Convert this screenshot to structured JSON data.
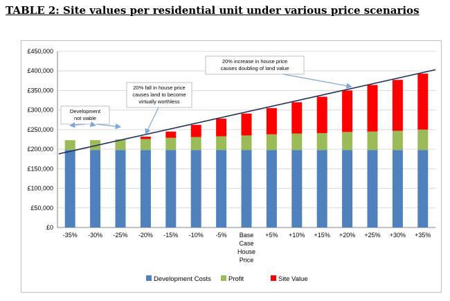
{
  "page": {
    "heading": "TABLE 2: Site values per residential unit under various price scenarios"
  },
  "chart_data": {
    "type": "bar",
    "stacked": true,
    "title": "",
    "xlabel": "",
    "ylabel": "",
    "ylim": [
      0,
      450000
    ],
    "ytick_step": 50000,
    "yticks": [
      "£0",
      "£50,000",
      "£100,000",
      "£150,000",
      "£200,000",
      "£250,000",
      "£300,000",
      "£350,000",
      "£400,000",
      "£450,000"
    ],
    "grid": true,
    "legend_position": "bottom",
    "categories": [
      "-35%",
      "-30%",
      "-25%",
      "-20%",
      "-15%",
      "-10%",
      "-5%",
      "Base Case House Price",
      "+5%",
      "+10%",
      "+15%",
      "+20%",
      "+25%",
      "+30%",
      "+35%"
    ],
    "category_label_lines": [
      [
        "-35%"
      ],
      [
        "-30%"
      ],
      [
        "-25%"
      ],
      [
        "-20%"
      ],
      [
        "-15%"
      ],
      [
        "-10%"
      ],
      [
        "-5%"
      ],
      [
        "Base",
        "Case",
        "House",
        "Price"
      ],
      [
        "+5%"
      ],
      [
        "+10%"
      ],
      [
        "+15%"
      ],
      [
        "+20%"
      ],
      [
        "+25%"
      ],
      [
        "+30%"
      ],
      [
        "+35%"
      ]
    ],
    "series": [
      {
        "name": "Development Costs",
        "color": "#4f81bd",
        "values": [
          198000,
          198000,
          198000,
          198000,
          198000,
          198000,
          198000,
          198000,
          198000,
          198000,
          198000,
          198000,
          198000,
          198000,
          198000
        ]
      },
      {
        "name": "Profit",
        "color": "#9bbb59",
        "values": [
          25000,
          25000,
          27000,
          28000,
          31000,
          33000,
          35000,
          37000,
          40000,
          42000,
          43000,
          46000,
          47000,
          49000,
          52000
        ]
      },
      {
        "name": "Site Value",
        "color": "#ff0000",
        "values": [
          0,
          0,
          0,
          6000,
          16000,
          31000,
          45000,
          56000,
          67000,
          80000,
          93000,
          106000,
          119000,
          130000,
          143000
        ]
      }
    ],
    "trend_line": {
      "color": "#1f2d5a",
      "from": [
        -0.45,
        188000
      ],
      "to": [
        14.5,
        403000
      ]
    },
    "annotations": [
      {
        "id": "dev-not-viable",
        "lines": [
          "Development",
          "not viable"
        ],
        "targets": [
          0,
          1,
          2
        ]
      },
      {
        "id": "fall-20",
        "lines": [
          "20% fall in house price",
          "causes land to become",
          "virtually worthless"
        ],
        "targets": [
          3
        ]
      },
      {
        "id": "rise-20",
        "lines": [
          "20% increase in house price",
          "causes doubling of land value"
        ],
        "targets": [
          11
        ]
      }
    ]
  }
}
